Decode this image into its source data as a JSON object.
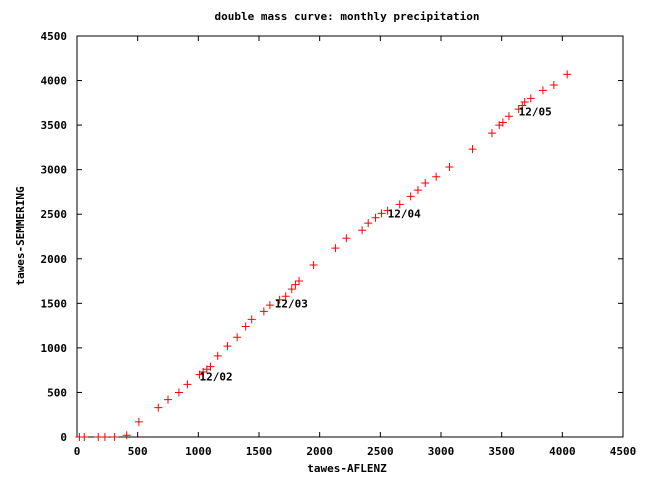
{
  "chart_data": {
    "type": "scatter",
    "title": "double mass curve: monthly precipitation",
    "xlabel": "tawes-AFLENZ",
    "ylabel": "tawes-SEMMERING",
    "xlim": [
      0,
      4500
    ],
    "ylim": [
      0,
      4500
    ],
    "xticks": [
      0,
      500,
      1000,
      1500,
      2000,
      2500,
      3000,
      3500,
      4000,
      4500
    ],
    "yticks": [
      0,
      500,
      1000,
      1500,
      2000,
      2500,
      3000,
      3500,
      4000,
      4500
    ],
    "grid": false,
    "marker": "plus",
    "marker_color": "#ff0000",
    "series": [
      {
        "points": [
          [
            20,
            0
          ],
          [
            60,
            0
          ],
          [
            175,
            0
          ],
          [
            230,
            0
          ],
          [
            310,
            0
          ],
          [
            410,
            20
          ],
          [
            510,
            170
          ],
          [
            670,
            330
          ],
          [
            750,
            420
          ],
          [
            840,
            500
          ],
          [
            910,
            590
          ],
          [
            1010,
            700
          ],
          [
            1040,
            730
          ],
          [
            1070,
            760
          ],
          [
            1100,
            790
          ],
          [
            1160,
            910
          ],
          [
            1240,
            1020
          ],
          [
            1320,
            1120
          ],
          [
            1390,
            1240
          ],
          [
            1440,
            1320
          ],
          [
            1540,
            1410
          ],
          [
            1590,
            1480
          ],
          [
            1670,
            1540
          ],
          [
            1720,
            1580
          ],
          [
            1770,
            1660
          ],
          [
            1800,
            1710
          ],
          [
            1830,
            1750
          ],
          [
            1950,
            1930
          ],
          [
            2130,
            2120
          ],
          [
            2220,
            2230
          ],
          [
            2350,
            2320
          ],
          [
            2400,
            2400
          ],
          [
            2460,
            2460
          ],
          [
            2510,
            2510
          ],
          [
            2560,
            2540
          ],
          [
            2660,
            2610
          ],
          [
            2750,
            2700
          ],
          [
            2810,
            2770
          ],
          [
            2870,
            2850
          ],
          [
            2960,
            2920
          ],
          [
            3070,
            3030
          ],
          [
            3260,
            3230
          ],
          [
            3420,
            3410
          ],
          [
            3480,
            3500
          ],
          [
            3510,
            3530
          ],
          [
            3560,
            3600
          ],
          [
            3640,
            3680
          ],
          [
            3670,
            3720
          ],
          [
            3690,
            3760
          ],
          [
            3740,
            3800
          ],
          [
            3840,
            3890
          ],
          [
            3930,
            3950
          ],
          [
            4040,
            4070
          ]
        ]
      }
    ],
    "annotations": [
      {
        "text": "12/02",
        "x": 1010,
        "y": 680
      },
      {
        "text": "12/03",
        "x": 1630,
        "y": 1500
      },
      {
        "text": "12/04",
        "x": 2560,
        "y": 2510
      },
      {
        "text": "12/05",
        "x": 3640,
        "y": 3650
      }
    ]
  }
}
